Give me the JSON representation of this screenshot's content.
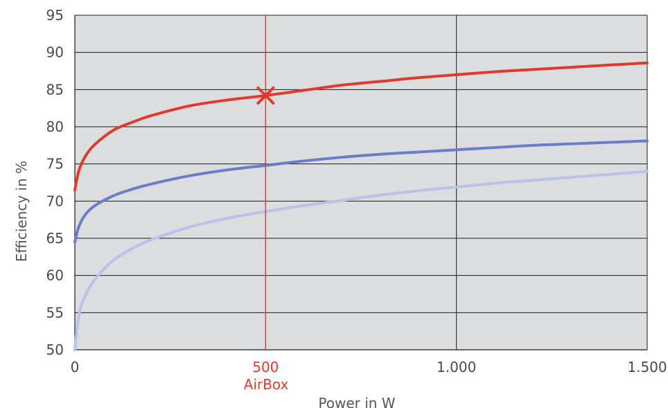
{
  "chart_data": {
    "type": "line",
    "title": "",
    "xlabel": "Power in W",
    "ylabel": "Efficiency in %",
    "xlim": [
      0,
      1500
    ],
    "ylim": [
      50,
      95
    ],
    "xticks": [
      {
        "value": 0,
        "label": "0"
      },
      {
        "value": 500,
        "label": "500"
      },
      {
        "value": 1000,
        "label": "1.000"
      },
      {
        "value": 1500,
        "label": "1.500"
      }
    ],
    "yticks": [
      50,
      55,
      60,
      65,
      70,
      75,
      80,
      85,
      90,
      95
    ],
    "grid": true,
    "background_color": "#dcdddf",
    "series": [
      {
        "color": "#e03a2c",
        "x": [
          0,
          10,
          25,
          50,
          100,
          150,
          200,
          300,
          400,
          500,
          600,
          700,
          800,
          900,
          1000,
          1100,
          1200,
          1300,
          1400,
          1500
        ],
        "y": [
          71.5,
          74.0,
          75.8,
          77.5,
          79.5,
          80.6,
          81.5,
          82.8,
          83.6,
          84.2,
          84.9,
          85.6,
          86.1,
          86.6,
          87.0,
          87.4,
          87.7,
          88.0,
          88.3,
          88.6
        ]
      },
      {
        "color": "#6a7dca",
        "x": [
          0,
          10,
          25,
          50,
          100,
          150,
          200,
          300,
          400,
          500,
          600,
          700,
          800,
          900,
          1000,
          1100,
          1200,
          1300,
          1400,
          1500
        ],
        "y": [
          64.5,
          66.5,
          68.0,
          69.3,
          70.7,
          71.6,
          72.3,
          73.4,
          74.2,
          74.8,
          75.4,
          75.9,
          76.3,
          76.6,
          76.9,
          77.2,
          77.5,
          77.7,
          77.9,
          78.1
        ]
      },
      {
        "color": "#b9c1ec",
        "x": [
          0,
          10,
          25,
          50,
          100,
          150,
          200,
          300,
          400,
          500,
          600,
          700,
          800,
          900,
          1000,
          1100,
          1200,
          1300,
          1400,
          1500
        ],
        "y": [
          50.0,
          54.5,
          57.0,
          59.3,
          62.0,
          63.6,
          64.8,
          66.5,
          67.7,
          68.6,
          69.4,
          70.1,
          70.8,
          71.4,
          71.9,
          72.4,
          72.8,
          73.2,
          73.6,
          74.0
        ]
      }
    ],
    "marker": {
      "x": 500,
      "y": 84.2,
      "symbol": "x",
      "color": "#e03a2c"
    },
    "reference_line": {
      "x": 500,
      "color": "#e03a2c",
      "label": "AirBox"
    }
  }
}
